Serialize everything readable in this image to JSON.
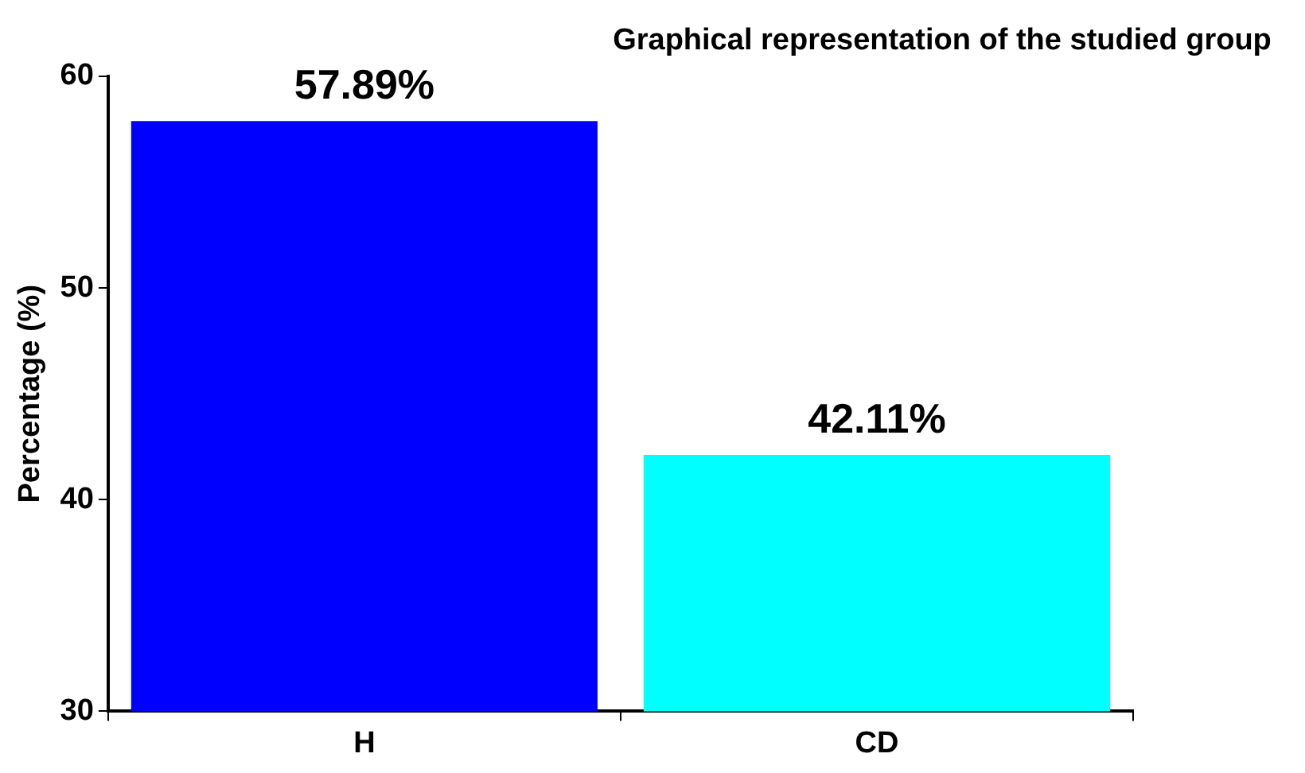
{
  "chart_data": {
    "type": "bar",
    "title": "Graphical representation of the studied group",
    "ylabel": "Percentage (%)",
    "categories": [
      "H",
      "CD"
    ],
    "values": [
      57.89,
      42.11
    ],
    "colors": [
      "#0000ff",
      "#00ffff"
    ],
    "value_labels": [
      "57.89%",
      "42.11%"
    ],
    "ylim": [
      30,
      60
    ],
    "yticks": [
      30,
      40,
      50,
      60
    ],
    "grid": false,
    "legend": false
  }
}
